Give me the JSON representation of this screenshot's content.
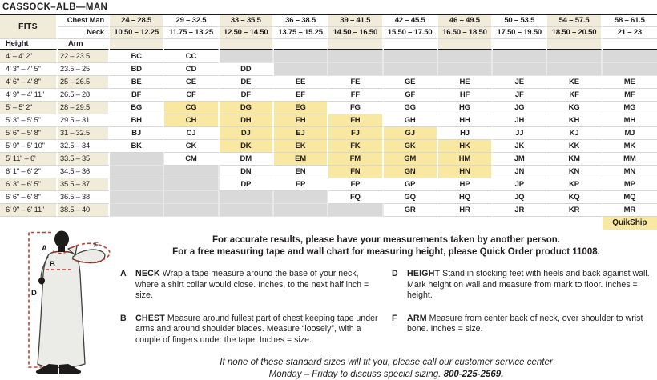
{
  "title": "CASSOCK–ALB—MAN",
  "colors": {
    "column_tint": "#F1ECD9",
    "quikship_highlight": "#F8E8A1",
    "unavailable_gray": "#D9D9D9",
    "rule_black": "#1A1A1A",
    "text": "#231F20",
    "measure_line_red": "#CC3B28"
  },
  "table": {
    "fits_label": "FITS",
    "chest_label": "Chest Man",
    "neck_label": "Neck",
    "height_label": "Height",
    "arm_label": "Arm",
    "chest_ranges": [
      "24 – 28.5",
      "29 – 32.5",
      "33 – 35.5",
      "36 – 38.5",
      "39 – 41.5",
      "42 – 45.5",
      "46 – 49.5",
      "50 – 53.5",
      "54 – 57.5",
      "58 – 61.5"
    ],
    "neck_ranges": [
      "10.50 – 12.25",
      "11.75 – 13.25",
      "12.50 – 14.50",
      "13.75 – 15.25",
      "14.50 – 16.50",
      "15.50 – 17.50",
      "16.50 – 18.50",
      "17.50 – 19.50",
      "18.50 – 20.50",
      "21 – 23"
    ],
    "rows": [
      {
        "height": "4' – 4' 2\"",
        "arm": "22 – 23.5",
        "cells": [
          "BC",
          "CC",
          "",
          "",
          "",
          "",
          "",
          "",
          "",
          ""
        ]
      },
      {
        "height": "4' 3\" – 4' 5\"",
        "arm": "23.5 – 25",
        "cells": [
          "BD",
          "CD",
          "DD",
          "",
          "",
          "",
          "",
          "",
          "",
          ""
        ]
      },
      {
        "height": "4' 6\" – 4' 8\"",
        "arm": "25 – 26.5",
        "cells": [
          "BE",
          "CE",
          "DE",
          "EE",
          "FE",
          "GE",
          "HE",
          "JE",
          "KE",
          "ME"
        ]
      },
      {
        "height": "4' 9\" – 4' 11\"",
        "arm": "26.5 – 28",
        "cells": [
          "BF",
          "CF",
          "DF",
          "EF",
          "FF",
          "GF",
          "HF",
          "JF",
          "KF",
          "MF"
        ]
      },
      {
        "height": "5' – 5' 2\"",
        "arm": "28 – 29.5",
        "cells": [
          "BG",
          "CG*",
          "DG*",
          "EG*",
          "FG",
          "GG",
          "HG",
          "JG",
          "KG",
          "MG"
        ]
      },
      {
        "height": "5' 3\" – 5' 5\"",
        "arm": "29.5 – 31",
        "cells": [
          "BH",
          "CH*",
          "DH*",
          "EH*",
          "FH*",
          "GH",
          "HH",
          "JH",
          "KH",
          "MH"
        ]
      },
      {
        "height": "5' 6\" – 5' 8\"",
        "arm": "31 – 32.5",
        "cells": [
          "BJ",
          "CJ",
          "DJ*",
          "EJ*",
          "FJ*",
          "GJ*",
          "HJ",
          "JJ",
          "KJ",
          "MJ"
        ]
      },
      {
        "height": "5' 9\" – 5' 10\"",
        "arm": "32.5 – 34",
        "cells": [
          "BK",
          "CK",
          "DK*",
          "EK*",
          "FK*",
          "GK*",
          "HK*",
          "JK",
          "KK",
          "MK"
        ]
      },
      {
        "height": "5' 11\" – 6'",
        "arm": "33.5 – 35",
        "cells": [
          "",
          "CM",
          "DM",
          "EM*",
          "FM*",
          "GM*",
          "HM*",
          "JM",
          "KM",
          "MM"
        ]
      },
      {
        "height": "6' 1\" – 6' 2\"",
        "arm": "34.5 – 36",
        "cells": [
          "",
          "",
          "DN",
          "EN",
          "FN*",
          "GN*",
          "HN*",
          "JN",
          "KN",
          "MN"
        ]
      },
      {
        "height": "6' 3\" – 6' 5\"",
        "arm": "35.5 – 37",
        "cells": [
          "",
          "",
          "DP",
          "EP",
          "FP",
          "GP",
          "HP",
          "JP",
          "KP",
          "MP"
        ]
      },
      {
        "height": "6' 6\" – 6' 8\"",
        "arm": "36.5 – 38",
        "cells": [
          "",
          "",
          "",
          "",
          "FQ",
          "GQ",
          "HQ",
          "JQ",
          "KQ",
          "MQ"
        ]
      },
      {
        "height": "6' 9\" – 6' 11\"",
        "arm": "38.5 – 40",
        "cells": [
          "",
          "",
          "",
          "",
          "",
          "GR",
          "HR",
          "JR",
          "KR",
          "MR"
        ]
      }
    ],
    "quikship_label": "QuikShip"
  },
  "notes": {
    "line1": "For accurate results, please have your measurements taken by another person.",
    "line2": "For a free measuring tape and wall chart for measuring height, please Quick Order product 11008."
  },
  "instructions": [
    {
      "letter": "A",
      "term": "NECK",
      "text": "Wrap a tape measure around the base of your neck, where a shirt collar would close. Inches, to the next half inch = size."
    },
    {
      "letter": "B",
      "term": "CHEST",
      "text": "Measure around fullest part of chest keeping tape under arms and around shoulder blades. Measure “loosely”, with a couple of fingers under the tape. Inches = size."
    },
    {
      "letter": "D",
      "term": "HEIGHT",
      "text": "Stand in stocking feet with heels and back against wall. Mark height on wall and measure from mark to floor. Inches = height."
    },
    {
      "letter": "F",
      "term": "ARM",
      "text": "Measure from center back of neck, over shoulder to wrist bone. Inches = size."
    }
  ],
  "footer": {
    "line1": "If none of these standard sizes will fit you, please call our customer service center",
    "line2": "Monday – Friday to discuss special sizing. ",
    "phone": "800-225-2569."
  },
  "diagram": {
    "labels": {
      "a": "A",
      "b": "B",
      "d": "D",
      "f": "F"
    }
  }
}
